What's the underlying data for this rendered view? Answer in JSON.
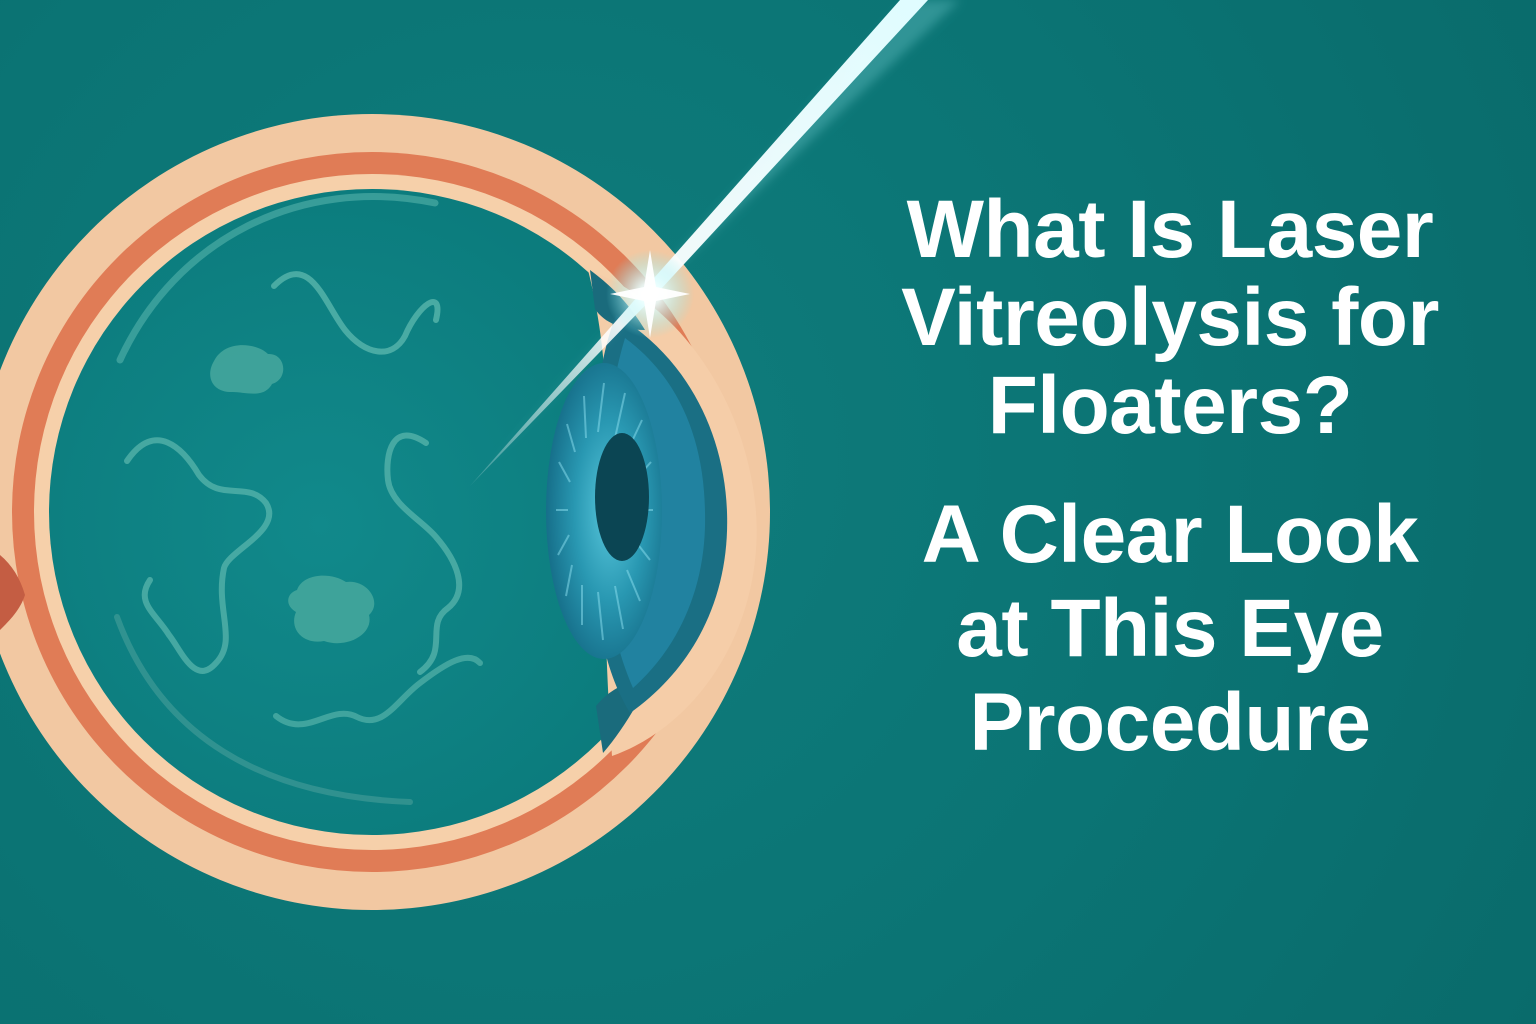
{
  "headline": {
    "line1": "What Is Laser",
    "line2": "Vitreolysis for",
    "line3": "Floaters?"
  },
  "subheadline": {
    "line1": "A Clear Look",
    "line2": "at This Eye",
    "line3": "Procedure"
  },
  "colors": {
    "background": "#0b7474",
    "sclera": "#f4c9a2",
    "choroid": "#df7b55",
    "vitreous": "#0d8383",
    "iris": "#1c8fa8",
    "pupil": "#0a4856",
    "laser": "#e8ffff",
    "text": "#ffffff"
  },
  "illustration": {
    "subject": "eye cross-section with laser beam and vitreous floaters"
  }
}
